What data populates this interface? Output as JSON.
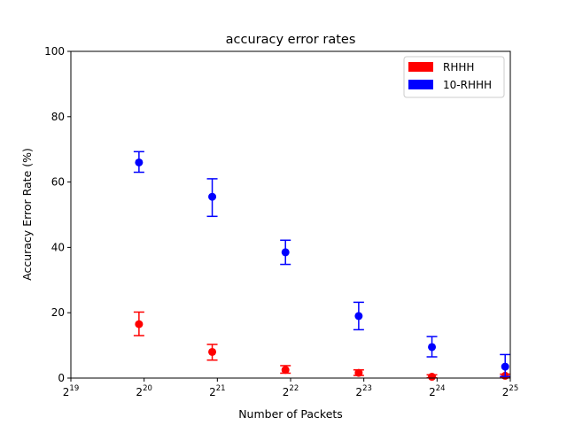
{
  "chart_data": {
    "type": "scatter",
    "title": "accuracy error rates",
    "xlabel": "Number of Packets",
    "ylabel": "Accuracy Error Rate (%)",
    "xscale": "log2",
    "xlim_exp": [
      19,
      25
    ],
    "ylim": [
      0,
      100
    ],
    "yticks": [
      0,
      20,
      40,
      60,
      80,
      100
    ],
    "xticks": [
      {
        "exp": 19,
        "base": "2",
        "sup": "19"
      },
      {
        "exp": 20,
        "base": "2",
        "sup": "20"
      },
      {
        "exp": 21,
        "base": "2",
        "sup": "21"
      },
      {
        "exp": 22,
        "base": "2",
        "sup": "22"
      },
      {
        "exp": 23,
        "base": "2",
        "sup": "23"
      },
      {
        "exp": 24,
        "base": "2",
        "sup": "24"
      },
      {
        "exp": 25,
        "base": "2",
        "sup": "25"
      }
    ],
    "legend_position": "top-right",
    "series": [
      {
        "name": "RHHH",
        "color": "#ff0000",
        "points": [
          {
            "x_exp": 19.93,
            "y": 16.5,
            "lo": 13.0,
            "hi": 20.2
          },
          {
            "x_exp": 20.93,
            "y": 8.0,
            "lo": 5.5,
            "hi": 10.3
          },
          {
            "x_exp": 21.93,
            "y": 2.5,
            "lo": 1.5,
            "hi": 3.8
          },
          {
            "x_exp": 22.93,
            "y": 1.6,
            "lo": 0.8,
            "hi": 2.5
          },
          {
            "x_exp": 23.93,
            "y": 0.4,
            "lo": 0.1,
            "hi": 1.0
          },
          {
            "x_exp": 24.93,
            "y": 0.7,
            "lo": 0.2,
            "hi": 1.2
          }
        ]
      },
      {
        "name": "10-RHHH",
        "color": "#0000ff",
        "points": [
          {
            "x_exp": 19.93,
            "y": 66.0,
            "lo": 63.0,
            "hi": 69.3
          },
          {
            "x_exp": 20.93,
            "y": 55.5,
            "lo": 49.5,
            "hi": 61.0
          },
          {
            "x_exp": 21.93,
            "y": 38.5,
            "lo": 34.8,
            "hi": 42.2
          },
          {
            "x_exp": 22.93,
            "y": 19.0,
            "lo": 14.8,
            "hi": 23.2
          },
          {
            "x_exp": 23.93,
            "y": 9.5,
            "lo": 6.5,
            "hi": 12.7
          },
          {
            "x_exp": 24.93,
            "y": 3.5,
            "lo": 0.5,
            "hi": 7.2
          }
        ]
      }
    ]
  }
}
